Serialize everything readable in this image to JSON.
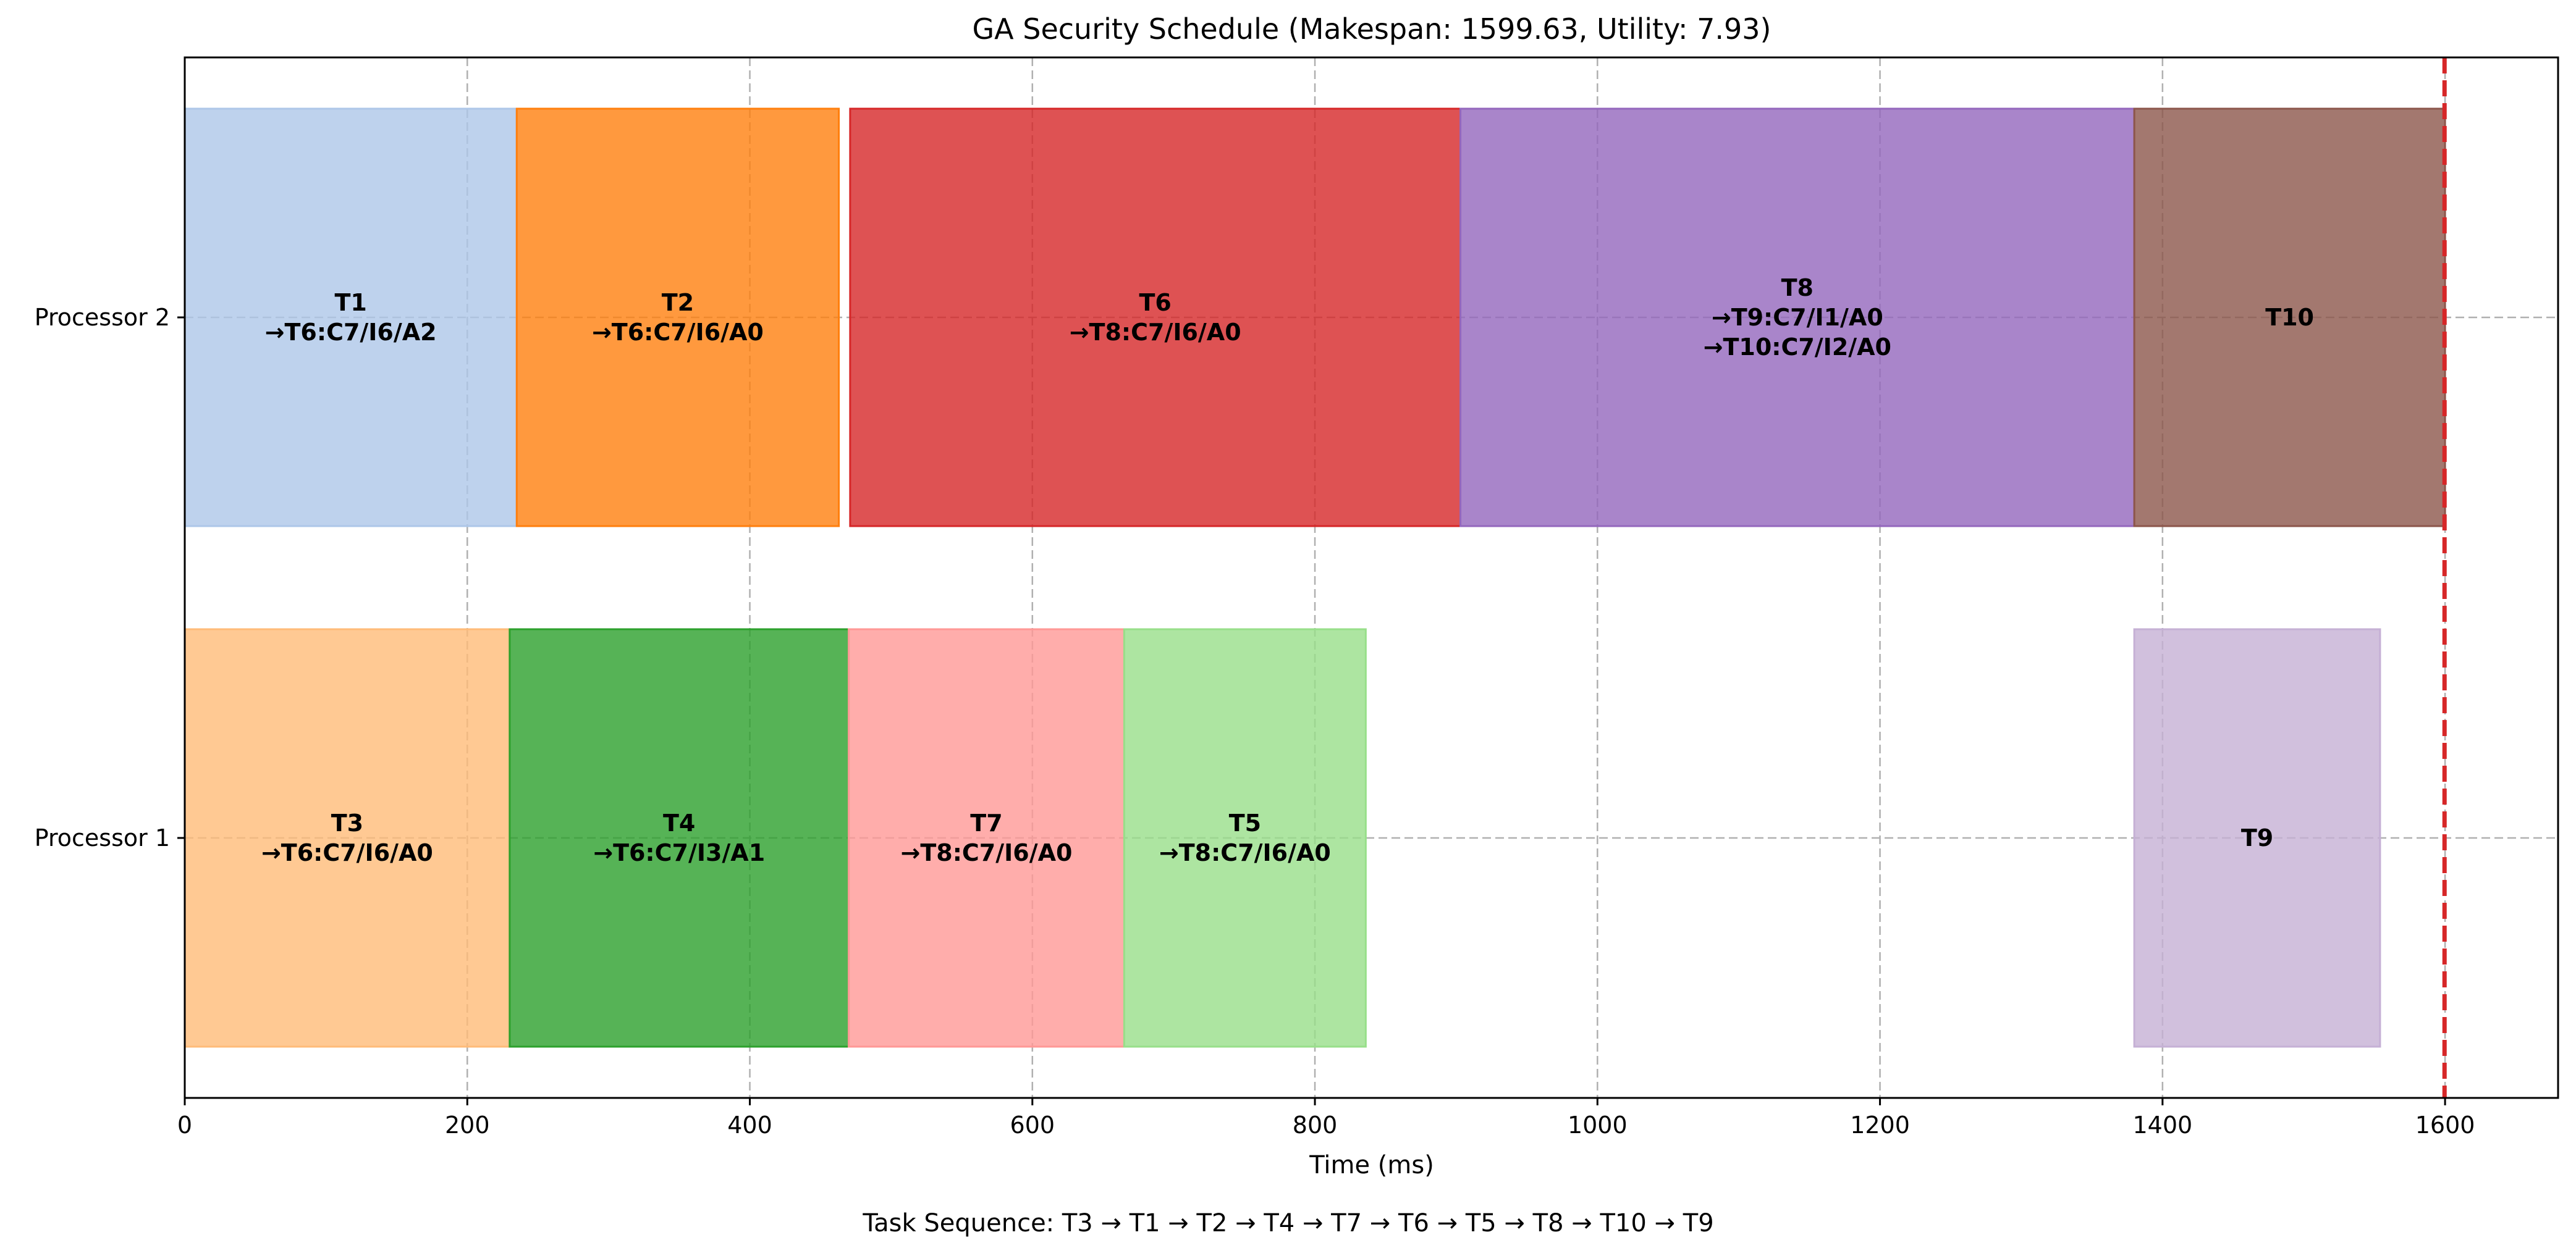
{
  "chart_data": {
    "type": "gantt",
    "title": "GA Security Schedule (Makespan: 1599.63, Utility: 7.93)",
    "xlabel": "Time (ms)",
    "xlim": [
      0,
      1680
    ],
    "x_ticks": [
      0,
      200,
      400,
      600,
      800,
      1000,
      1200,
      1400,
      1600
    ],
    "processors": [
      "Processor 1",
      "Processor 2"
    ],
    "makespan": 1599.63,
    "makespan_line_color": "#d62728",
    "grid": true,
    "tasks": [
      {
        "name": "T1",
        "processor": "Processor 2",
        "start": 0,
        "end": 235,
        "color": "#aec7e8",
        "label_lines": [
          "T1",
          "→T6:C7/I6/A2"
        ]
      },
      {
        "name": "T2",
        "processor": "Processor 2",
        "start": 235,
        "end": 463,
        "color": "#ff7f0e",
        "label_lines": [
          "T2",
          "→T6:C7/I6/A0"
        ]
      },
      {
        "name": "T6",
        "processor": "Processor 2",
        "start": 471,
        "end": 903,
        "color": "#d62728",
        "label_lines": [
          "T6",
          "→T8:C7/I6/A0"
        ]
      },
      {
        "name": "T8",
        "processor": "Processor 2",
        "start": 903,
        "end": 1380,
        "color": "#9467bd",
        "label_lines": [
          "T8",
          "→T9:C7/I1/A0",
          "→T10:C7/I2/A0"
        ]
      },
      {
        "name": "T10",
        "processor": "Processor 2",
        "start": 1380,
        "end": 1600,
        "color": "#8c564b",
        "label_lines": [
          "T10"
        ]
      },
      {
        "name": "T3",
        "processor": "Processor 1",
        "start": 0,
        "end": 230,
        "color": "#ffbb78",
        "label_lines": [
          "T3",
          "→T6:C7/I6/A0"
        ]
      },
      {
        "name": "T4",
        "processor": "Processor 1",
        "start": 230,
        "end": 470,
        "color": "#2ca02c",
        "label_lines": [
          "T4",
          "→T6:C7/I3/A1"
        ]
      },
      {
        "name": "T7",
        "processor": "Processor 1",
        "start": 470,
        "end": 665,
        "color": "#ff9896",
        "label_lines": [
          "T7",
          "→T8:C7/I6/A0"
        ]
      },
      {
        "name": "T5",
        "processor": "Processor 1",
        "start": 665,
        "end": 836,
        "color": "#98df8a",
        "label_lines": [
          "T5",
          "→T8:C7/I6/A0"
        ]
      },
      {
        "name": "T9",
        "processor": "Processor 1",
        "start": 1380,
        "end": 1554,
        "color": "#c5b0d5",
        "label_lines": [
          "T9"
        ]
      }
    ],
    "footer": "Task Sequence: T3 → T1 → T2 → T4 → T7 → T6 → T5 → T8 → T10 → T9"
  }
}
